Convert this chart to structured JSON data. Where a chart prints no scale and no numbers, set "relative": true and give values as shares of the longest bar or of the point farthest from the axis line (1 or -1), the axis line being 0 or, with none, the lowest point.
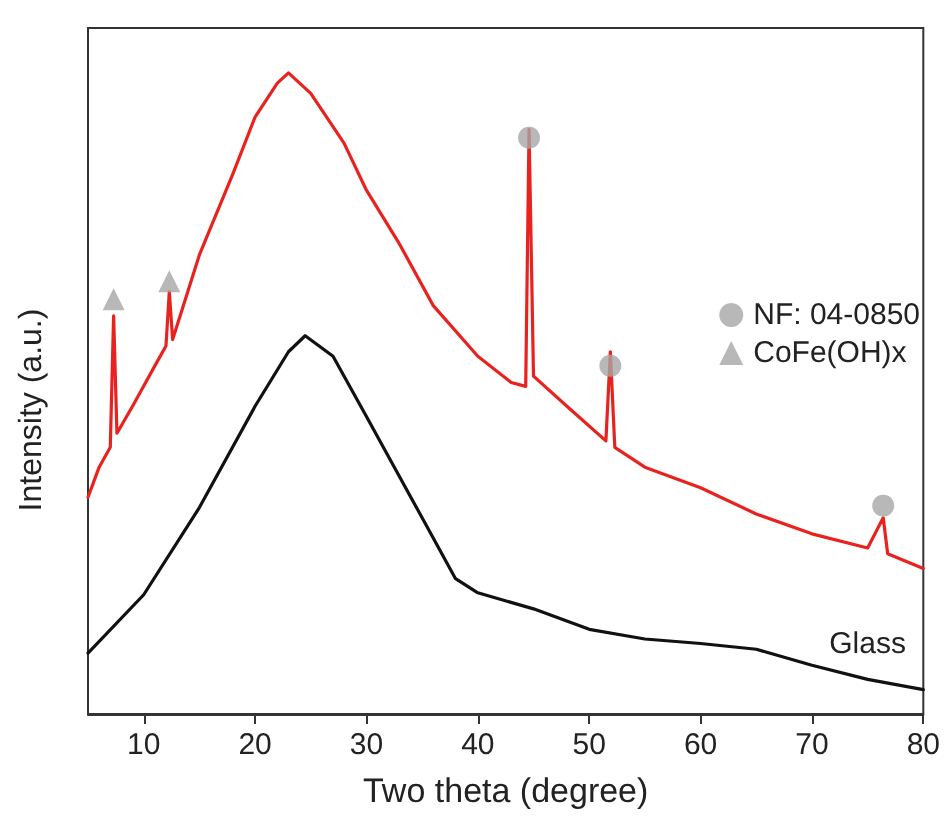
{
  "chart_data": {
    "type": "line",
    "xlabel": "Two theta (degree)",
    "ylabel": "Intensity (a.u.)",
    "relative": true,
    "xlim": [
      5,
      80
    ],
    "xticks": [
      10,
      20,
      30,
      40,
      50,
      60,
      70,
      80
    ],
    "grid": false,
    "legend": "right",
    "marker": "none",
    "series": [
      {
        "color": "#e8231f",
        "x": [
          5,
          6,
          7,
          7.3,
          7.6,
          9,
          11,
          12,
          12.3,
          12.6,
          15,
          18,
          20,
          22,
          23,
          25,
          28,
          30,
          33,
          36,
          40,
          43,
          44.3,
          44.6,
          45,
          48,
          51.5,
          51.9,
          52.3,
          55,
          60,
          65,
          70,
          75,
          76.4,
          76.8,
          80
        ],
        "values": [
          0.338,
          0.385,
          0.416,
          0.621,
          0.438,
          0.48,
          0.543,
          0.574,
          0.659,
          0.584,
          0.716,
          0.842,
          0.931,
          0.984,
          1.0,
          0.968,
          0.89,
          0.817,
          0.732,
          0.637,
          0.558,
          0.517,
          0.511,
          0.912,
          0.527,
          0.48,
          0.426,
          0.565,
          0.416,
          0.385,
          0.353,
          0.312,
          0.281,
          0.259,
          0.306,
          0.25,
          0.227
        ]
      },
      {
        "name": "Glass",
        "color": "#111111",
        "x": [
          5,
          10,
          15,
          20,
          23,
          24.5,
          27,
          30,
          35,
          38,
          40,
          45,
          50,
          55,
          60,
          65,
          70,
          75,
          80
        ],
        "values": [
          0.095,
          0.186,
          0.322,
          0.48,
          0.565,
          0.59,
          0.558,
          0.464,
          0.306,
          0.211,
          0.189,
          0.164,
          0.132,
          0.117,
          0.11,
          0.101,
          0.076,
          0.054,
          0.038
        ]
      },
      {
        "name": "NF: 04-0850",
        "type": "scatter",
        "marker": "circle",
        "color": "#a6a6a6",
        "x": [
          44.6,
          51.9,
          76.4
        ],
        "values": [
          0.899,
          0.543,
          0.325
        ]
      },
      {
        "name": "CoFe(OH)x",
        "type": "scatter",
        "marker": "triangle",
        "color": "#a6a6a6",
        "x": [
          7.3,
          12.3
        ],
        "values": [
          0.647,
          0.675
        ]
      }
    ]
  }
}
